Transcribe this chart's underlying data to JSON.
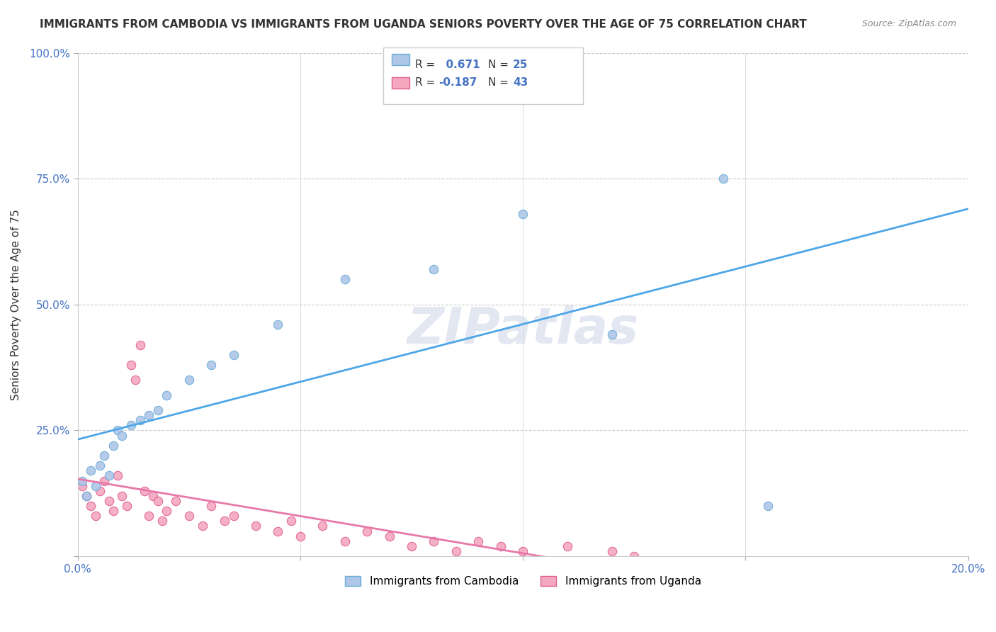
{
  "title": "IMMIGRANTS FROM CAMBODIA VS IMMIGRANTS FROM UGANDA SENIORS POVERTY OVER THE AGE OF 75 CORRELATION CHART",
  "source": "Source: ZipAtlas.com",
  "xlabel": "",
  "ylabel": "Seniors Poverty Over the Age of 75",
  "xlim": [
    0.0,
    0.2
  ],
  "ylim": [
    0.0,
    1.0
  ],
  "xticks": [
    0.0,
    0.05,
    0.1,
    0.15,
    0.2
  ],
  "yticks": [
    0.0,
    0.25,
    0.5,
    0.75,
    1.0
  ],
  "xticklabels": [
    "0.0%",
    "",
    "",
    "",
    "20.0%"
  ],
  "yticklabels": [
    "",
    "25.0%",
    "50.0%",
    "75.0%",
    "100.0%"
  ],
  "cambodia_color": "#aec6e8",
  "cambodia_edge": "#6aaed6",
  "uganda_color": "#f4a8c0",
  "uganda_edge": "#e06090",
  "r_cambodia": 0.671,
  "n_cambodia": 25,
  "r_uganda": -0.187,
  "n_uganda": 43,
  "line_cambodia_color": "#4da6e8",
  "line_uganda_color": "#e878a8",
  "watermark": "ZIPatlas",
  "watermark_color": "#d0d8e8",
  "cambodia_x": [
    0.001,
    0.002,
    0.003,
    0.004,
    0.005,
    0.006,
    0.007,
    0.008,
    0.009,
    0.01,
    0.012,
    0.014,
    0.016,
    0.018,
    0.02,
    0.025,
    0.03,
    0.035,
    0.045,
    0.06,
    0.08,
    0.1,
    0.12,
    0.145,
    0.155
  ],
  "cambodia_y": [
    0.15,
    0.12,
    0.17,
    0.14,
    0.18,
    0.2,
    0.16,
    0.22,
    0.25,
    0.24,
    0.26,
    0.27,
    0.28,
    0.29,
    0.32,
    0.35,
    0.38,
    0.4,
    0.46,
    0.55,
    0.57,
    0.68,
    0.44,
    0.75,
    0.1
  ],
  "uganda_x": [
    0.001,
    0.002,
    0.003,
    0.004,
    0.005,
    0.006,
    0.007,
    0.008,
    0.009,
    0.01,
    0.011,
    0.012,
    0.013,
    0.014,
    0.015,
    0.016,
    0.017,
    0.018,
    0.019,
    0.02,
    0.022,
    0.025,
    0.028,
    0.03,
    0.033,
    0.035,
    0.04,
    0.045,
    0.048,
    0.05,
    0.055,
    0.06,
    0.065,
    0.07,
    0.075,
    0.08,
    0.085,
    0.09,
    0.095,
    0.1,
    0.11,
    0.12,
    0.125
  ],
  "uganda_y": [
    0.14,
    0.12,
    0.1,
    0.08,
    0.13,
    0.15,
    0.11,
    0.09,
    0.16,
    0.12,
    0.1,
    0.38,
    0.35,
    0.42,
    0.13,
    0.08,
    0.12,
    0.11,
    0.07,
    0.09,
    0.11,
    0.08,
    0.06,
    0.1,
    0.07,
    0.08,
    0.06,
    0.05,
    0.07,
    0.04,
    0.06,
    0.03,
    0.05,
    0.04,
    0.02,
    0.03,
    0.01,
    0.03,
    0.02,
    0.01,
    0.02,
    0.01,
    0.0
  ]
}
